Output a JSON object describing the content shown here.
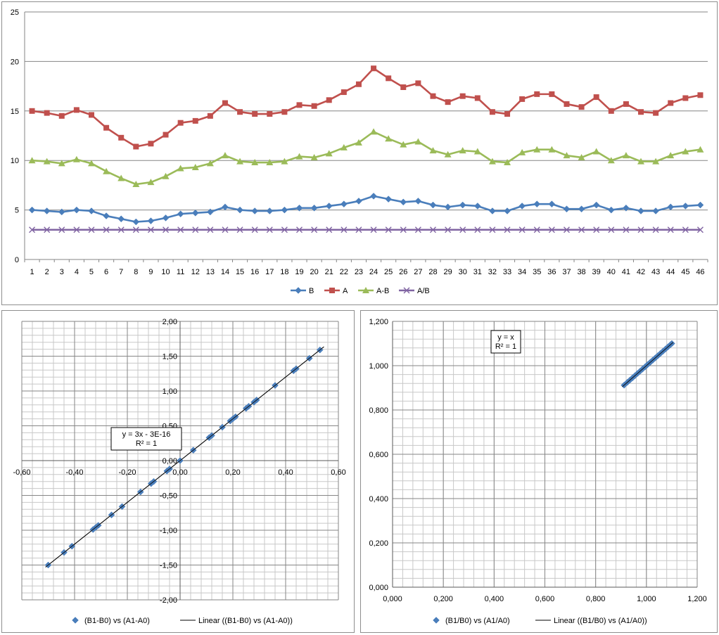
{
  "chart_data": [
    {
      "type": "line",
      "categories": [
        "1",
        "2",
        "3",
        "4",
        "5",
        "6",
        "7",
        "8",
        "9",
        "10",
        "11",
        "12",
        "13",
        "14",
        "15",
        "16",
        "17",
        "18",
        "19",
        "20",
        "21",
        "22",
        "23",
        "24",
        "25",
        "26",
        "27",
        "28",
        "29",
        "30",
        "31",
        "32",
        "33",
        "34",
        "35",
        "36",
        "37",
        "38",
        "39",
        "40",
        "41",
        "42",
        "43",
        "44",
        "45",
        "46"
      ],
      "ylim": [
        0,
        25
      ],
      "yticks": [
        "0",
        "5",
        "10",
        "15",
        "20",
        "25"
      ],
      "grid": true,
      "legend_position": "bottom",
      "series": [
        {
          "name": "B",
          "color": "#4a7ebb",
          "marker": "diamond",
          "values": [
            5.0,
            4.9,
            4.8,
            5.0,
            4.9,
            4.4,
            4.1,
            3.8,
            3.9,
            4.2,
            4.6,
            4.7,
            4.8,
            5.3,
            5.0,
            4.9,
            4.9,
            5.0,
            5.2,
            5.2,
            5.4,
            5.6,
            5.9,
            6.4,
            6.1,
            5.8,
            5.9,
            5.5,
            5.3,
            5.5,
            5.4,
            4.9,
            4.9,
            5.4,
            5.6,
            5.6,
            5.1,
            5.1,
            5.5,
            5.0,
            5.2,
            4.9,
            4.9,
            5.3,
            5.4,
            5.5
          ]
        },
        {
          "name": "A",
          "color": "#c0504d",
          "marker": "square",
          "values": [
            15.0,
            14.8,
            14.5,
            15.1,
            14.6,
            13.3,
            12.3,
            11.4,
            11.7,
            12.6,
            13.8,
            14.0,
            14.5,
            15.8,
            14.9,
            14.7,
            14.7,
            14.9,
            15.6,
            15.5,
            16.1,
            16.9,
            17.7,
            19.3,
            18.3,
            17.4,
            17.8,
            16.5,
            15.9,
            16.5,
            16.3,
            14.9,
            14.7,
            16.2,
            16.7,
            16.7,
            15.7,
            15.4,
            16.4,
            15.0,
            15.7,
            14.9,
            14.8,
            15.8,
            16.3,
            16.6
          ]
        },
        {
          "name": "A-B",
          "color": "#9bbb59",
          "marker": "triangle",
          "values": [
            10.0,
            9.9,
            9.7,
            10.1,
            9.7,
            8.9,
            8.2,
            7.6,
            7.8,
            8.4,
            9.2,
            9.3,
            9.7,
            10.5,
            9.9,
            9.8,
            9.8,
            9.9,
            10.4,
            10.3,
            10.7,
            11.3,
            11.8,
            12.9,
            12.2,
            11.6,
            11.9,
            11.0,
            10.6,
            11.0,
            10.9,
            9.9,
            9.8,
            10.8,
            11.1,
            11.1,
            10.5,
            10.3,
            10.9,
            10.0,
            10.5,
            9.9,
            9.9,
            10.5,
            10.9,
            11.1
          ]
        },
        {
          "name": "A/B",
          "color": "#8064a2",
          "marker": "x",
          "values": [
            3,
            3,
            3,
            3,
            3,
            3,
            3,
            3,
            3,
            3,
            3,
            3,
            3,
            3,
            3,
            3,
            3,
            3,
            3,
            3,
            3,
            3,
            3,
            3,
            3,
            3,
            3,
            3,
            3,
            3,
            3,
            3,
            3,
            3,
            3,
            3,
            3,
            3,
            3,
            3,
            3,
            3,
            3,
            3,
            3,
            3
          ]
        }
      ]
    },
    {
      "type": "scatter",
      "xlim": [
        -0.6,
        0.6
      ],
      "ylim": [
        -2.0,
        2.0
      ],
      "xticks": [
        "-0,60",
        "-0,40",
        "-0,20",
        "0,00",
        "0,20",
        "0,40",
        "0,60"
      ],
      "yticks": [
        "-2,00",
        "-1,50",
        "-1,00",
        "-0,50",
        "0,00",
        "0,50",
        "1,00",
        "1,50",
        "2,00"
      ],
      "grid": true,
      "legend_position": "bottom",
      "series": [
        {
          "name": "(B1-B0) vs (A1-A0)",
          "color": "#4a7ebb",
          "marker": "diamond",
          "x": [
            -0.5,
            -0.44,
            -0.41,
            -0.33,
            -0.32,
            -0.31,
            -0.26,
            -0.22,
            -0.15,
            -0.11,
            -0.1,
            -0.05,
            -0.04,
            0.0,
            0.05,
            0.11,
            0.12,
            0.16,
            0.19,
            0.2,
            0.21,
            0.25,
            0.26,
            0.28,
            0.29,
            0.36,
            0.43,
            0.44,
            0.49,
            0.53
          ],
          "y": [
            -1.5,
            -1.32,
            -1.23,
            -0.99,
            -0.96,
            -0.93,
            -0.78,
            -0.66,
            -0.45,
            -0.33,
            -0.3,
            -0.15,
            -0.12,
            0.0,
            0.15,
            0.33,
            0.36,
            0.48,
            0.57,
            0.6,
            0.63,
            0.75,
            0.78,
            0.84,
            0.87,
            1.08,
            1.29,
            1.32,
            1.47,
            1.59
          ]
        },
        {
          "name": "Linear ((B1-B0) vs (A1-A0))",
          "color": "#000000",
          "marker": "line",
          "x": [
            -0.51,
            0.545
          ],
          "y": [
            -1.53,
            1.635
          ]
        }
      ],
      "annotation": {
        "equation": "y = 3x - 3E-16",
        "r2": "R² = 1"
      }
    },
    {
      "type": "scatter",
      "xlim": [
        0,
        1.2
      ],
      "ylim": [
        0,
        1.2
      ],
      "xticks": [
        "0,000",
        "0,200",
        "0,400",
        "0,600",
        "0,800",
        "1,000",
        "1,200"
      ],
      "yticks": [
        "0,000",
        "0,200",
        "0,400",
        "0,600",
        "0,800",
        "1,000",
        "1,200"
      ],
      "grid": true,
      "legend_position": "bottom",
      "series": [
        {
          "name": "(B1/B0) vs (A1/A0)",
          "color": "#4a7ebb",
          "marker": "diamond",
          "x": [
            0.912,
            0.925,
            0.935,
            0.945,
            0.955,
            0.965,
            0.975,
            0.985,
            0.995,
            1.0,
            1.005,
            1.015,
            1.025,
            1.035,
            1.045,
            1.055,
            1.065,
            1.075,
            1.085,
            1.095,
            1.1
          ],
          "y": [
            0.912,
            0.925,
            0.935,
            0.945,
            0.955,
            0.965,
            0.975,
            0.985,
            0.995,
            1.0,
            1.005,
            1.015,
            1.025,
            1.035,
            1.045,
            1.055,
            1.065,
            1.075,
            1.085,
            1.095,
            1.1
          ]
        },
        {
          "name": "Linear ((B1/B0) vs (A1/A0))",
          "color": "#000000",
          "marker": "line",
          "x": [
            0.905,
            1.105
          ],
          "y": [
            0.905,
            1.105
          ]
        }
      ],
      "annotation": {
        "equation": "y = x",
        "r2": "R² = 1"
      }
    }
  ]
}
